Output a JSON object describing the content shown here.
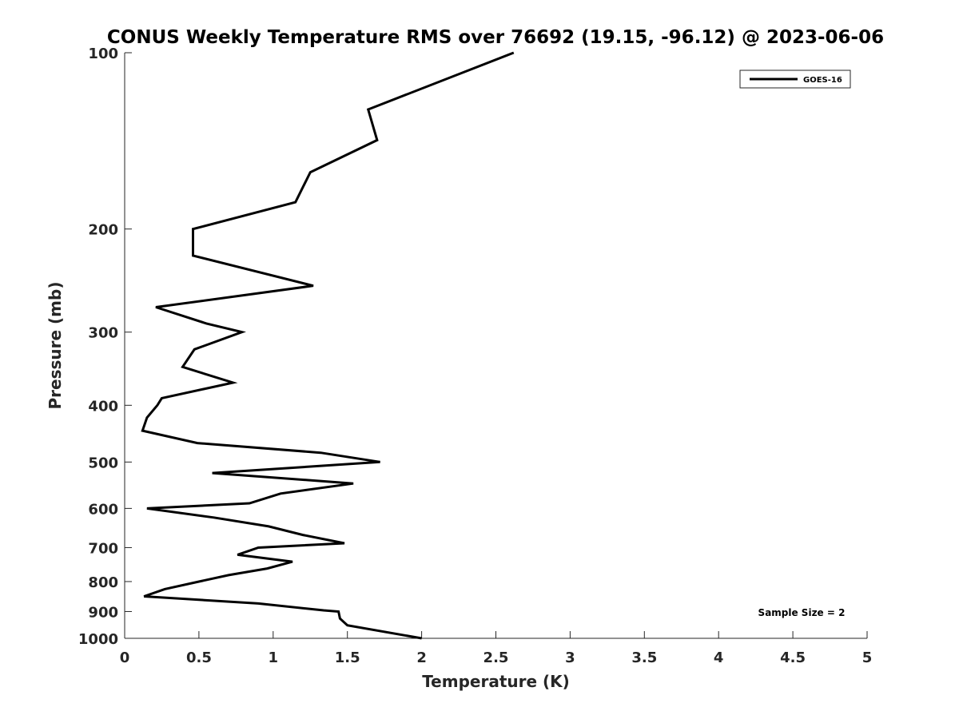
{
  "chart_data": {
    "type": "line",
    "title": "CONUS Weekly Temperature RMS over 76692 (19.15, -96.12) @ 2023-06-06",
    "xlabel": "Temperature (K)",
    "ylabel": "Pressure (mb)",
    "xlim": [
      0,
      5
    ],
    "ylim": [
      100,
      1000
    ],
    "y_scale": "log",
    "y_reversed": true,
    "x_ticks": [
      "0",
      "0.5",
      "1",
      "1.5",
      "2",
      "2.5",
      "3",
      "3.5",
      "4",
      "4.5",
      "5"
    ],
    "y_ticks": [
      "100",
      "200",
      "300",
      "400",
      "500",
      "600",
      "700",
      "800",
      "900",
      "1000"
    ],
    "grid": false,
    "legend_position": "top-right",
    "annotation": "Sample Size = 2",
    "series": [
      {
        "name": "GOES-16",
        "color": "#000000",
        "points": [
          [
            2.62,
            100
          ],
          [
            1.64,
            125
          ],
          [
            1.7,
            141
          ],
          [
            1.25,
            160
          ],
          [
            1.15,
            180
          ],
          [
            0.46,
            200
          ],
          [
            0.46,
            222
          ],
          [
            1.27,
            250
          ],
          [
            0.21,
            272
          ],
          [
            0.55,
            290
          ],
          [
            0.79,
            300
          ],
          [
            0.47,
            321
          ],
          [
            0.39,
            344
          ],
          [
            0.73,
            366
          ],
          [
            0.25,
            389
          ],
          [
            0.22,
            400
          ],
          [
            0.15,
            420
          ],
          [
            0.12,
            442
          ],
          [
            0.49,
            464
          ],
          [
            1.32,
            482
          ],
          [
            1.72,
            500
          ],
          [
            0.59,
            522
          ],
          [
            1.54,
            544
          ],
          [
            1.05,
            566
          ],
          [
            0.84,
            588
          ],
          [
            0.15,
            600
          ],
          [
            0.6,
            622
          ],
          [
            0.97,
            644
          ],
          [
            1.2,
            666
          ],
          [
            1.48,
            688
          ],
          [
            0.9,
            700
          ],
          [
            0.76,
            720
          ],
          [
            1.13,
            740
          ],
          [
            0.96,
            760
          ],
          [
            0.7,
            780
          ],
          [
            0.5,
            800
          ],
          [
            0.27,
            824
          ],
          [
            0.13,
            848
          ],
          [
            0.9,
            872
          ],
          [
            1.34,
            896
          ],
          [
            1.44,
            900
          ],
          [
            1.45,
            925
          ],
          [
            1.5,
            950
          ],
          [
            2.0,
            1000
          ]
        ]
      }
    ]
  }
}
